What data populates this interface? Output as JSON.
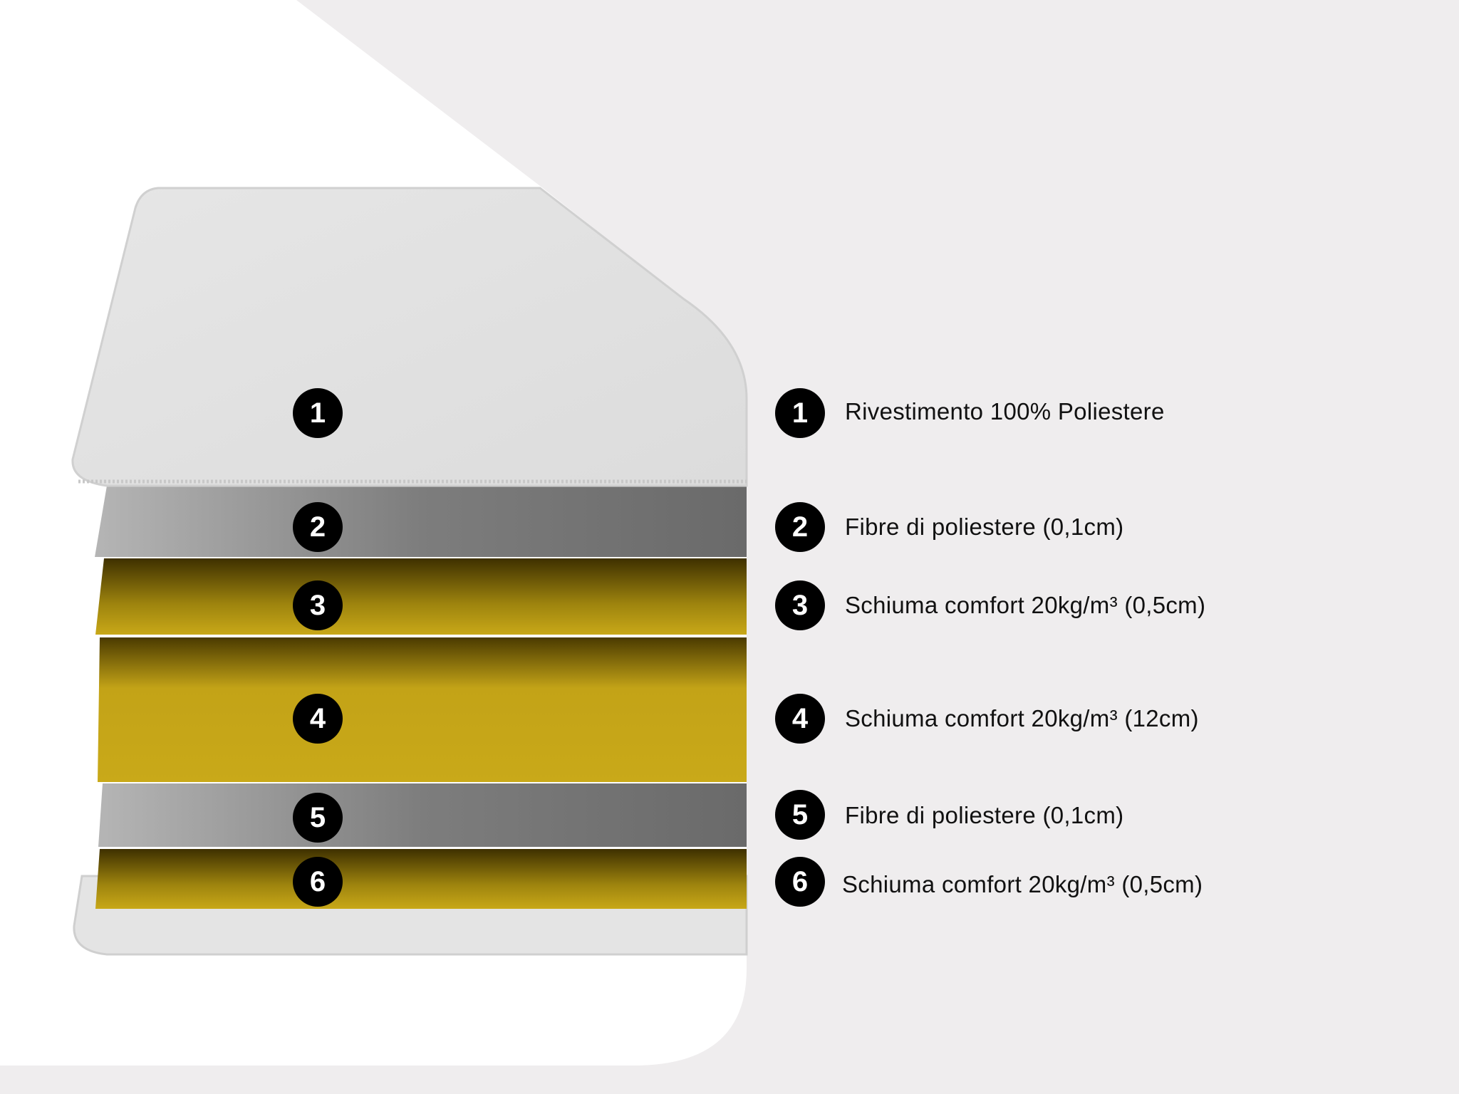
{
  "layers": [
    {
      "number": "1",
      "label": "Rivestimento 100% Poliestere",
      "material": "cover"
    },
    {
      "number": "2",
      "label": "Fibre di poliestere (0,1cm)",
      "material": "fiber"
    },
    {
      "number": "3",
      "label": "Schiuma comfort 20kg/m³ (0,5cm)",
      "material": "foam"
    },
    {
      "number": "4",
      "label": "Schiuma comfort 20kg/m³ (12cm)",
      "material": "foam"
    },
    {
      "number": "5",
      "label": "Fibre di poliestere (0,1cm)",
      "material": "fiber"
    },
    {
      "number": "6",
      "label": "Schiuma comfort 20kg/m³ (0,5cm)",
      "material": "foam"
    }
  ],
  "colors": {
    "background": "#efedee",
    "foam": "#c8a818",
    "fiber": "#8a8a8a",
    "cover": "#e2e2e2",
    "badge": "#000000"
  }
}
